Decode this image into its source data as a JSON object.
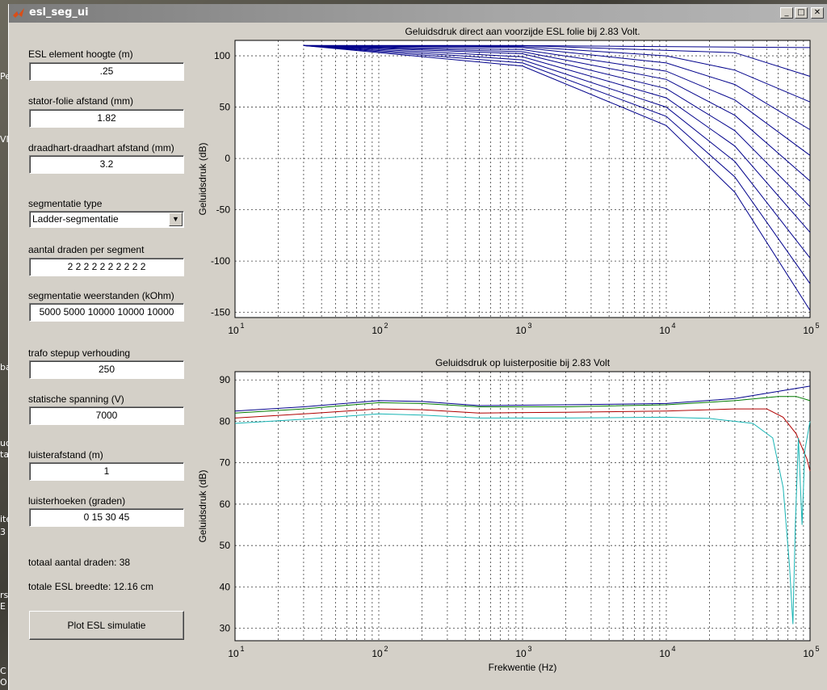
{
  "window": {
    "title": "esl_seg_ui"
  },
  "desktop_labels": [
    "Pe",
    "VI",
    "bal",
    "ud",
    "ta",
    "ite",
    "3",
    "rs",
    "E",
    "C",
    "O"
  ],
  "form": {
    "height_label": "ESL element hoogte (m)",
    "height_value": ".25",
    "gap_label": "stator-folie afstand (mm)",
    "gap_value": "1.82",
    "pitch_label": "draadhart-draadhart afstand (mm)",
    "pitch_value": "3.2",
    "segtype_label": "segmentatie type",
    "segtype_value": "Ladder-segmentatie",
    "wires_label": "aantal draden per segment",
    "wires_value": "2 2 2 2 2 2 2 2 2 2",
    "res_label": "segmentatie weerstanden (kOhm)",
    "res_value": "5000 5000 10000 10000 10000",
    "trafo_label": "trafo stepup verhouding",
    "trafo_value": "250",
    "bias_label": "statische spanning (V)",
    "bias_value": "7000",
    "dist_label": "luisterafstand (m)",
    "dist_value": "1",
    "angles_label": "luisterhoeken (graden)",
    "angles_value": "0 15 30 45",
    "total_wires": "totaal aantal draden: 38",
    "total_width": "totale ESL breedte: 12.16 cm",
    "plot_button": "Plot ESL simulatie"
  },
  "icons": {
    "app": "matlab-icon",
    "minimize": "minimize-icon",
    "maximize": "maximize-icon",
    "close": "close-icon",
    "dropdown": "chevron-down-icon"
  },
  "colors": {
    "curve_blue": "#00008b",
    "curve_green": "#007a00",
    "curve_red": "#b00000",
    "curve_cyan": "#18b4b4",
    "grid": "#000000"
  },
  "chart_data": [
    {
      "type": "line",
      "title": "Geluidsdruk direct aan voorzijde ESL folie bij 2.83 Volt.",
      "xlabel": "",
      "ylabel": "Geluidsdruk (dB)",
      "xscale": "log",
      "xlim": [
        10,
        100000
      ],
      "ylim": [
        -155,
        115
      ],
      "yticks": [
        100,
        50,
        0,
        -50,
        -100,
        -150
      ],
      "xtick_exps": [
        "1",
        "2",
        "3",
        "4",
        "5"
      ],
      "grid": true,
      "series": [
        {
          "values": [
            [
              30,
              110
            ],
            [
              1000,
              110
            ],
            [
              100000,
              108
            ]
          ]
        },
        {
          "values": [
            [
              30,
              110
            ],
            [
              1000,
              110
            ],
            [
              30000,
              103
            ],
            [
              100000,
              80
            ]
          ]
        },
        {
          "values": [
            [
              30,
              110
            ],
            [
              1000,
              109
            ],
            [
              10000,
              100
            ],
            [
              30000,
              86
            ],
            [
              100000,
              55
            ]
          ]
        },
        {
          "values": [
            [
              30,
              110
            ],
            [
              1000,
              108
            ],
            [
              10000,
              93
            ],
            [
              30000,
              72
            ],
            [
              100000,
              28
            ]
          ]
        },
        {
          "values": [
            [
              30,
              110
            ],
            [
              1000,
              106
            ],
            [
              10000,
              85
            ],
            [
              30000,
              57
            ],
            [
              100000,
              3
            ]
          ]
        },
        {
          "values": [
            [
              30,
              110
            ],
            [
              1000,
              104
            ],
            [
              10000,
              77
            ],
            [
              30000,
              42
            ],
            [
              100000,
              -22
            ]
          ]
        },
        {
          "values": [
            [
              30,
              110
            ],
            [
              1000,
              102
            ],
            [
              10000,
              68
            ],
            [
              30000,
              27
            ],
            [
              100000,
              -47
            ]
          ]
        },
        {
          "values": [
            [
              30,
              110
            ],
            [
              1000,
              99
            ],
            [
              10000,
              59
            ],
            [
              30000,
              12
            ],
            [
              100000,
              -72
            ]
          ]
        },
        {
          "values": [
            [
              30,
              110
            ],
            [
              1000,
              96
            ],
            [
              10000,
              50
            ],
            [
              30000,
              -3
            ],
            [
              100000,
              -97
            ]
          ]
        },
        {
          "values": [
            [
              30,
              110
            ],
            [
              1000,
              93
            ],
            [
              10000,
              41
            ],
            [
              30000,
              -18
            ],
            [
              100000,
              -122
            ]
          ]
        },
        {
          "values": [
            [
              30,
              110
            ],
            [
              1000,
              90
            ],
            [
              10000,
              32
            ],
            [
              30000,
              -33
            ],
            [
              100000,
              -148
            ]
          ]
        }
      ]
    },
    {
      "type": "line",
      "title": "Geluidsdruk op luisterpositie bij 2.83 Volt",
      "xlabel": "Frekwentie (Hz)",
      "ylabel": "Geluidsdruk (dB)",
      "xscale": "log",
      "xlim": [
        10,
        100000
      ],
      "ylim": [
        27,
        92
      ],
      "yticks": [
        90,
        80,
        70,
        60,
        50,
        40,
        30
      ],
      "xtick_exps": [
        "1",
        "2",
        "3",
        "4",
        "5"
      ],
      "grid": true,
      "series": [
        {
          "values": [
            [
              10,
              82.5
            ],
            [
              30,
              83.5
            ],
            [
              100,
              85
            ],
            [
              200,
              84.8
            ],
            [
              500,
              83.8
            ],
            [
              2000,
              84
            ],
            [
              10000,
              84.3
            ],
            [
              30000,
              85.5
            ],
            [
              100000,
              88.5
            ]
          ]
        },
        {
          "values": [
            [
              10,
              82
            ],
            [
              30,
              83
            ],
            [
              100,
              84.5
            ],
            [
              200,
              84.3
            ],
            [
              500,
              83.5
            ],
            [
              2000,
              83.5
            ],
            [
              10000,
              84
            ],
            [
              30000,
              85
            ],
            [
              60000,
              86
            ],
            [
              80000,
              86
            ],
            [
              100000,
              85
            ]
          ]
        },
        {
          "values": [
            [
              10,
              80.8
            ],
            [
              30,
              81.8
            ],
            [
              100,
              83
            ],
            [
              200,
              82.8
            ],
            [
              500,
              82
            ],
            [
              2000,
              82.2
            ],
            [
              10000,
              82.5
            ],
            [
              30000,
              83
            ],
            [
              50000,
              83
            ],
            [
              65000,
              81
            ],
            [
              80000,
              77
            ],
            [
              95000,
              71
            ],
            [
              100000,
              68
            ]
          ]
        },
        {
          "values": [
            [
              10,
              79.5
            ],
            [
              30,
              80.5
            ],
            [
              100,
              81.8
            ],
            [
              200,
              81.5
            ],
            [
              500,
              80.8
            ],
            [
              2000,
              80.8
            ],
            [
              10000,
              81
            ],
            [
              20000,
              80.7
            ],
            [
              40000,
              79.5
            ],
            [
              55000,
              76
            ],
            [
              65000,
              64
            ],
            [
              72000,
              45
            ],
            [
              76000,
              31
            ],
            [
              79000,
              55
            ],
            [
              83000,
              76
            ],
            [
              88000,
              55
            ],
            [
              92000,
              73
            ],
            [
              100000,
              80
            ]
          ]
        }
      ]
    }
  ]
}
